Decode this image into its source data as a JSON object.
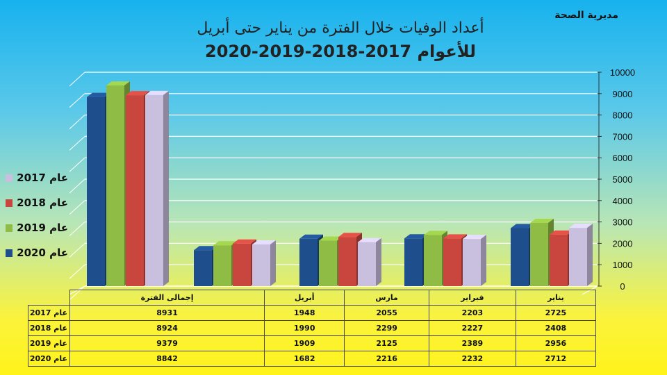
{
  "header": {
    "organization": "مديرية الصحة",
    "title_line1": "أعداد الوفيات خلال الفترة من يناير حتى أبريل",
    "title_line2": "للأعوام 2017-2018-2019-2020"
  },
  "chart_data": {
    "type": "bar",
    "title": "أعداد الوفيات خلال الفترة من يناير حتى أبريل للأعوام 2017-2018-2019-2020",
    "categories": [
      "يناير",
      "فبراير",
      "مارس",
      "أبريل",
      "إجمالى الفترة"
    ],
    "y_ticks": [
      "0",
      "1000",
      "2000",
      "3000",
      "4000",
      "5000",
      "6000",
      "7000",
      "8000",
      "9000",
      "10000"
    ],
    "ylim": [
      0,
      10000
    ],
    "grid": true,
    "legend_position": "left",
    "series": [
      {
        "name": "عام 2020",
        "color": "#1f4e8c",
        "values": [
          2712,
          2232,
          2216,
          1682,
          8842
        ]
      },
      {
        "name": "عام 2019",
        "color": "#8fbc45",
        "values": [
          2956,
          2389,
          2125,
          1909,
          9379
        ]
      },
      {
        "name": "عام 2018",
        "color": "#c9463f",
        "values": [
          2408,
          2227,
          2299,
          1990,
          8924
        ]
      },
      {
        "name": "عام 2017",
        "color": "#c9c0e0",
        "values": [
          2725,
          2203,
          2055,
          1948,
          8931
        ]
      }
    ],
    "table_rows": [
      {
        "label": "عام 2017",
        "values": [
          "8931",
          "1948",
          "2055",
          "2203",
          "2725"
        ]
      },
      {
        "label": "عام 2018",
        "values": [
          "8924",
          "1990",
          "2299",
          "2227",
          "2408"
        ]
      },
      {
        "label": "عام 2019",
        "values": [
          "9379",
          "1909",
          "2125",
          "2389",
          "2956"
        ]
      },
      {
        "label": "عام 2020",
        "values": [
          "8842",
          "1682",
          "2216",
          "2232",
          "2712"
        ]
      }
    ],
    "table_headers": [
      "إجمالى الفترة",
      "أبريل",
      "مارس",
      "فبراير",
      "يناير"
    ]
  }
}
